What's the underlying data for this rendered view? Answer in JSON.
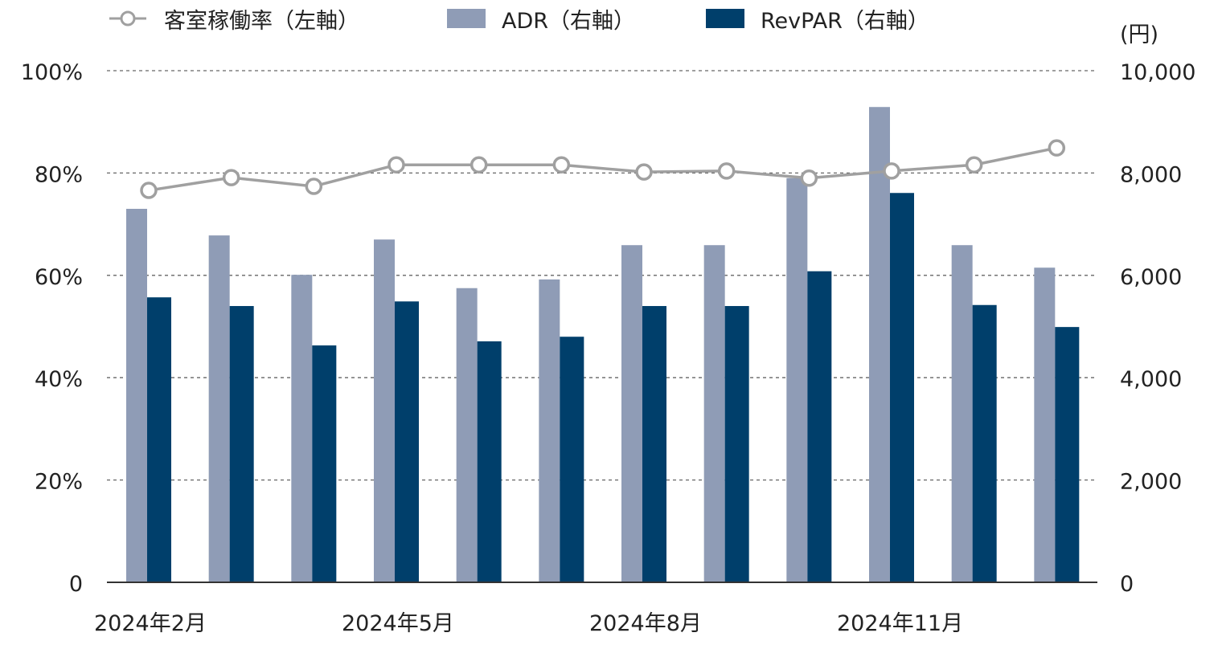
{
  "chart_data": {
    "type": "bar+line",
    "categories": [
      "2024年2月",
      "",
      "",
      "2024年5月",
      "",
      "",
      "2024年8月",
      "",
      "",
      "2024年11月",
      "",
      ""
    ],
    "legend": [
      {
        "name": "客室稼働率（左軸）",
        "kind": "line",
        "color": "#a0a0a0"
      },
      {
        "name": "ADR（右軸）",
        "kind": "bar",
        "color": "#8f9cb6"
      },
      {
        "name": "RevPAR（右軸）",
        "kind": "bar",
        "color": "#003f6b"
      }
    ],
    "legend_placement": "top",
    "series": [
      {
        "name": "客室稼働率（左軸）",
        "axis": "left",
        "values": [
          76.6,
          79.1,
          77.4,
          81.6,
          81.6,
          81.6,
          80.2,
          80.4,
          79.0,
          80.4,
          81.6,
          84.9
        ]
      },
      {
        "name": "ADR（右軸）",
        "axis": "right",
        "values": [
          7300,
          6780,
          6010,
          6700,
          5750,
          5920,
          6590,
          6590,
          7900,
          9290,
          6590,
          6150
        ]
      },
      {
        "name": "RevPAR（右軸）",
        "axis": "right",
        "values": [
          5570,
          5400,
          4630,
          5490,
          4710,
          4800,
          5400,
          5400,
          6080,
          7610,
          5420,
          4990
        ]
      }
    ],
    "left_axis": {
      "ylim": [
        0,
        100
      ],
      "ticks": [
        "0",
        "20%",
        "40%",
        "60%",
        "80%",
        "100%"
      ]
    },
    "right_axis": {
      "unit": "(円)",
      "ylim": [
        0,
        10000
      ],
      "ticks": [
        "0",
        "2,000",
        "4,000",
        "6,000",
        "8,000",
        "10,000"
      ]
    },
    "grid": true
  }
}
